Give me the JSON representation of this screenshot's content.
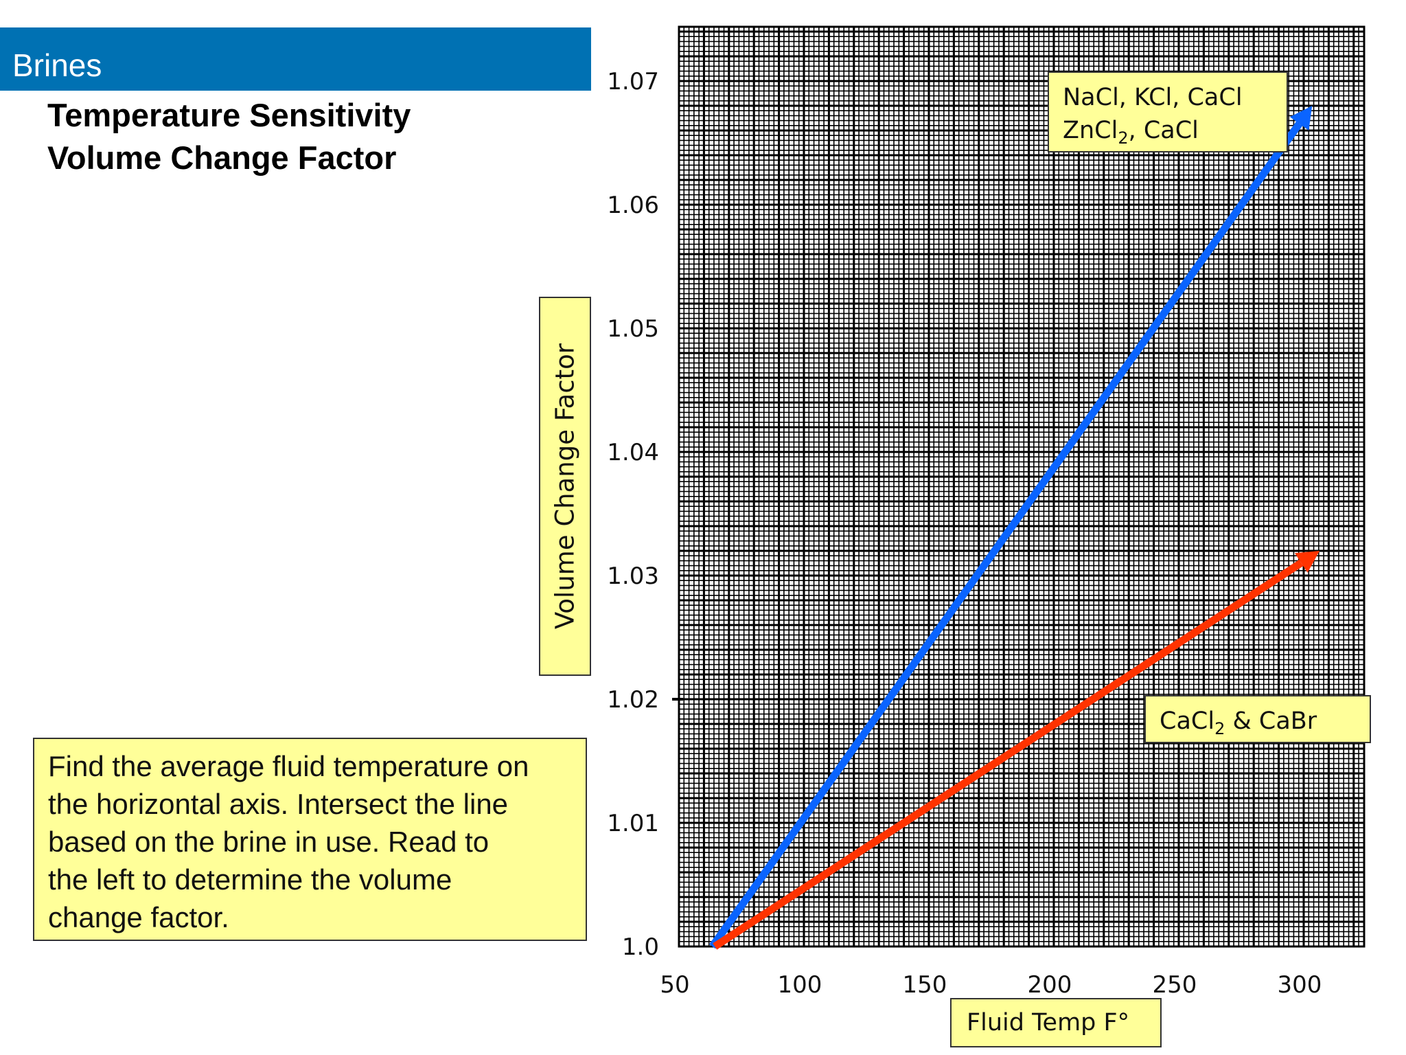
{
  "header": {
    "section_title": "Brines"
  },
  "slide": {
    "title_line1": "Temperature Sensitivity",
    "title_line2": "Volume Change Factor"
  },
  "note": {
    "line1": "Find the average fluid temperature on",
    "line2": "the horizontal axis. Intersect the line",
    "line3": "based on the brine in use. Read to",
    "line4": "the left to determine the volume",
    "line5": "change factor."
  },
  "colors": {
    "banner": "#0071b3",
    "note_bg": "#ffff99",
    "series_blue": "#0a64ff",
    "series_red": "#ff3300"
  },
  "chart_data": {
    "type": "line",
    "title": "",
    "xlabel": "Fluid Temp F°",
    "ylabel": "Volume Change Factor",
    "xlim": [
      50,
      325
    ],
    "ylim": [
      1.0,
      1.075
    ],
    "x_ticks": [
      50,
      100,
      150,
      200,
      250,
      300
    ],
    "x_tick_labels": [
      "50",
      "100",
      "150",
      "200",
      "250",
      "300"
    ],
    "y_ticks": [
      1.0,
      1.01,
      1.02,
      1.03,
      1.04,
      1.05,
      1.06,
      1.07
    ],
    "y_tick_labels": [
      "1.0",
      "1.01",
      "1.02",
      "1.03",
      "1.04",
      "1.05",
      "1.06",
      "1.07"
    ],
    "grid": true,
    "legend": [
      {
        "line1_pre": "NaCl, KCl, CaCl",
        "line2_pre": "ZnCl",
        "line2_sub": "2",
        "line2_post": ", CaCl",
        "position": "top-right"
      },
      {
        "line1_pre": "CaCl",
        "line1_sub": "2",
        "line1_post": "  &  CaBr",
        "position": "right"
      }
    ],
    "series": [
      {
        "name": "NaCl, KCl, CaCl / ZnCl2, CaCl",
        "color": "#0a64ff",
        "x": [
          65,
          305
        ],
        "y": [
          1.0,
          1.068
        ]
      },
      {
        "name": "CaCl2 & CaBr",
        "color": "#ff3300",
        "x": [
          66,
          308
        ],
        "y": [
          1.0,
          1.032
        ]
      }
    ]
  }
}
